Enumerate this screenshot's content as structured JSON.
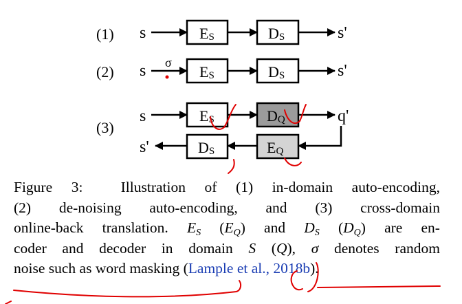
{
  "diagram": {
    "rows": [
      {
        "label": "(1)",
        "input": "s",
        "encoder": "E",
        "encoder_sub": "S",
        "decoder": "D",
        "decoder_sub": "S",
        "output": "s'"
      },
      {
        "label": "(2)",
        "input": "s",
        "noise": "σ",
        "encoder": "E",
        "encoder_sub": "S",
        "decoder": "D",
        "decoder_sub": "S",
        "output": "s'"
      },
      {
        "label": "(3)",
        "top": {
          "input": "s",
          "encoder": "E",
          "encoder_sub": "S",
          "decoder": "D",
          "decoder_sub": "Q",
          "output": "q'"
        },
        "bottom": {
          "output": "s'",
          "decoder": "D",
          "decoder_sub": "S",
          "encoder": "E",
          "encoder_sub": "Q"
        }
      }
    ],
    "colors": {
      "shaded_box": "#9b9b9b",
      "light_box": "#d4d4d4",
      "annotation_red": "#e00000"
    }
  },
  "caption": {
    "label": "Figure 3:",
    "line1": "Illustration of (1) in-domain auto-encoding,",
    "line2": "(2) de-noising auto-encoding, and (3) cross-domain",
    "line3_a": "online-back translation.",
    "es": "E",
    "s": "S",
    "eq": "E",
    "q": "Q",
    "ds": "D",
    "dq": "D",
    "line3_and": "and",
    "line3_are": "are en-",
    "line4_a": "coder and decoder in domain",
    "line4_sq": "S",
    "line4_q": "Q",
    "sigma": "σ",
    "line4_b": "denotes random",
    "line5_a": "noise such as word masking (",
    "citation": "Lample et al., 2018b",
    "line5_b": ")."
  }
}
